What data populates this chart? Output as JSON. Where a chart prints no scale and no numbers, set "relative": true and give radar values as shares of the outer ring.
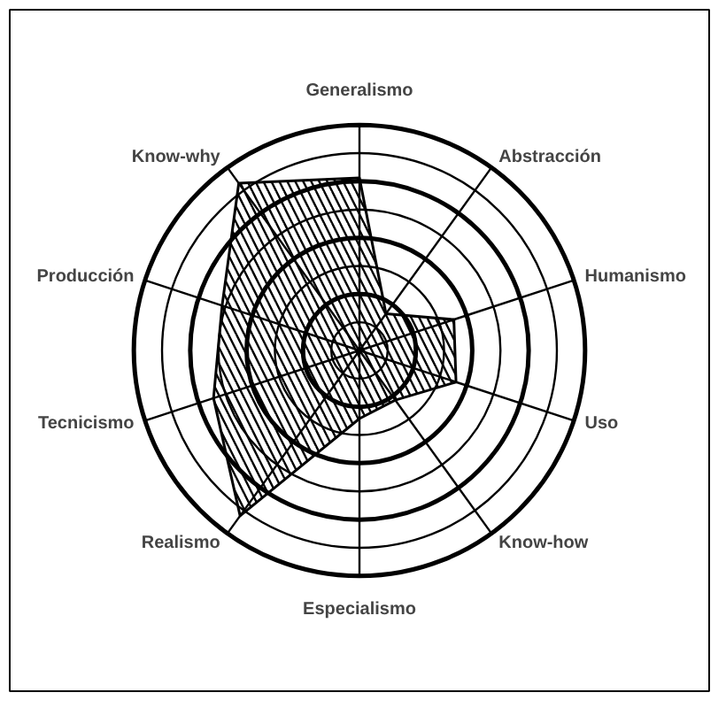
{
  "chart_data": {
    "type": "radar",
    "relative": true,
    "grid": true,
    "categories": [
      "Generalismo",
      "Abstracción",
      "Humanismo",
      "Uso",
      "Know-how",
      "Especialismo",
      "Realismo",
      "Tecnicismo",
      "Producción",
      "Know-why"
    ],
    "series": [
      {
        "color": "#000000",
        "values": [
          0.76,
          0.2,
          0.44,
          0.45,
          0.27,
          0.3,
          0.9,
          0.68,
          0.64,
          0.91
        ]
      }
    ]
  }
}
